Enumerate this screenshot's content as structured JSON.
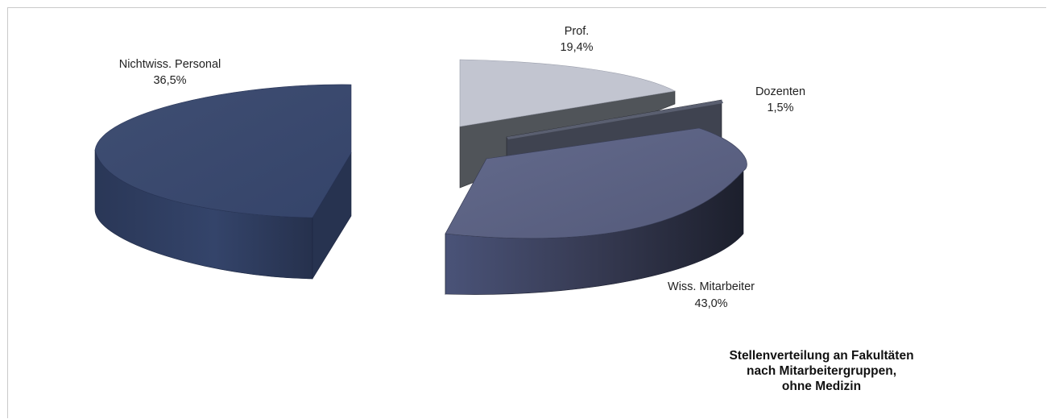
{
  "chart_data": {
    "type": "pie",
    "categories": [
      "Nichtwiss. Personal",
      "Prof.",
      "Dozenten",
      "Wiss. Mitarbeiter"
    ],
    "values": [
      36.5,
      19.4,
      1.5,
      43.0
    ],
    "value_labels": [
      "36,5%",
      "19,4%",
      "1,5%",
      "43,0%"
    ],
    "title_lines": [
      "Stellenverteilung an Fakultäten",
      "nach Mitarbeitergruppen,",
      "ohne Medizin"
    ],
    "style": "3d-exploded",
    "legend": "none",
    "colors": {
      "Nichtwiss. Personal": "#3a4868",
      "Prof.": "#c2c5d0",
      "Dozenten": "#3f4350",
      "Wiss. Mitarbeiter": "#5c6282"
    }
  }
}
